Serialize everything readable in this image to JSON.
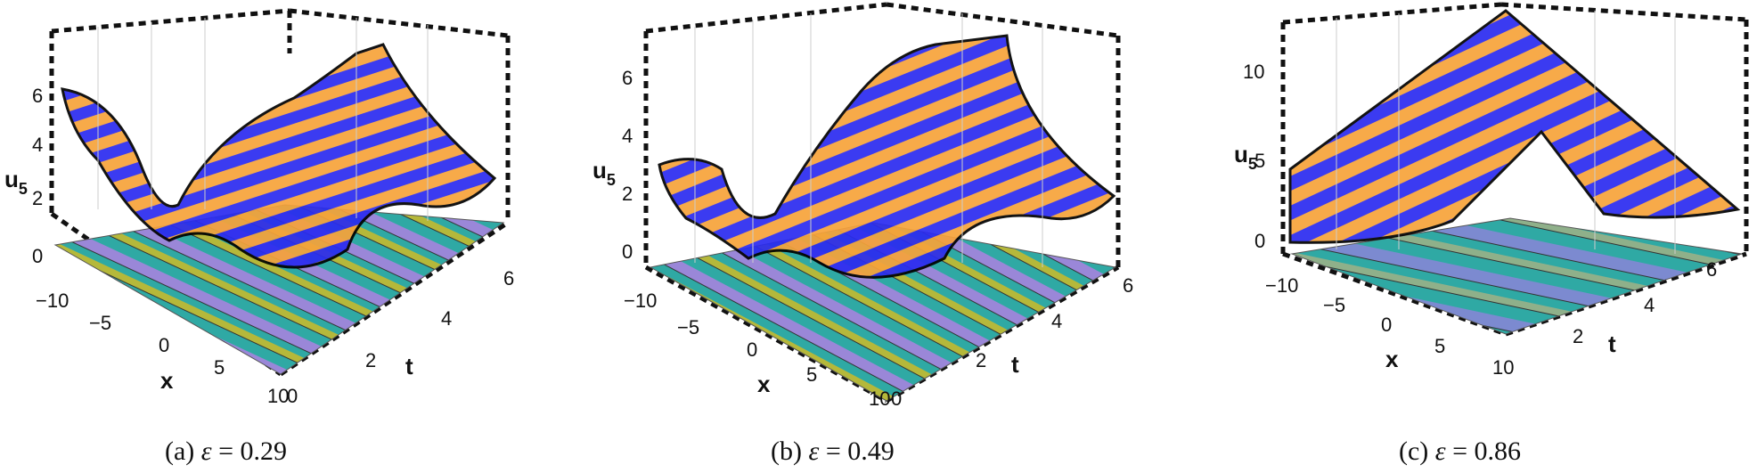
{
  "figure": {
    "panels": [
      {
        "caption_label": "(a)",
        "epsilon_symbol": "ε",
        "equals": "=",
        "epsilon_value": "0.29",
        "z_label": "u",
        "z_sub": "5",
        "x_label": "x",
        "t_label": "t",
        "z_ticks": [
          "6",
          "4",
          "2",
          "0"
        ],
        "x_ticks": [
          "−10",
          "−5",
          "0",
          "5",
          "10"
        ],
        "t_ticks": [
          "0",
          "2",
          "4",
          "6"
        ]
      },
      {
        "caption_label": "(b)",
        "epsilon_symbol": "ε",
        "equals": "=",
        "epsilon_value": "0.49",
        "z_label": "u",
        "z_sub": "5",
        "x_label": "x",
        "t_label": "t",
        "z_ticks": [
          "6",
          "4",
          "2",
          "0"
        ],
        "x_ticks": [
          "−10",
          "−5",
          "0",
          "5",
          "10"
        ],
        "t_ticks": [
          "0",
          "2",
          "4",
          "6"
        ]
      },
      {
        "caption_label": "(c)",
        "epsilon_symbol": "ε",
        "equals": "=",
        "epsilon_value": "0.86",
        "z_label": "u",
        "z_sub": "5",
        "x_label": "x",
        "t_label": "t",
        "z_ticks": [
          "10",
          "5",
          "0"
        ],
        "x_ticks": [
          "−10",
          "−5",
          "0",
          "5",
          "10"
        ],
        "t_ticks": [
          "2",
          "4",
          "6"
        ]
      }
    ],
    "colors": {
      "stripe_blue": "#2b2bf0",
      "stripe_orange": "#f7a33a",
      "contour_teal": "#2fa9a4",
      "contour_olive": "#b5b83a",
      "contour_purple": "#9a87d8"
    }
  }
}
